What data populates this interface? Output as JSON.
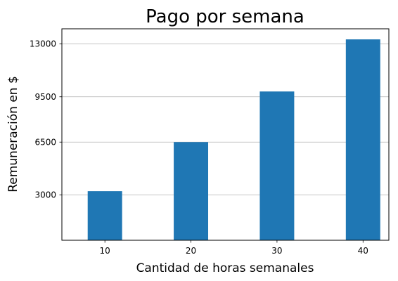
{
  "chart_data": {
    "type": "bar",
    "title": "Pago por semana",
    "xlabel": "Cantidad de horas semanales",
    "ylabel": "Remuneración en $",
    "categories": [
      "10",
      "20",
      "30",
      "40"
    ],
    "values": [
      3250,
      6500,
      9850,
      13300
    ],
    "yticks": [
      3000,
      6500,
      9500,
      13000
    ],
    "ylim": [
      0,
      14000
    ],
    "grid": "y",
    "bar_color": "#1f77b4",
    "grid_color": "#b0b0b0"
  }
}
